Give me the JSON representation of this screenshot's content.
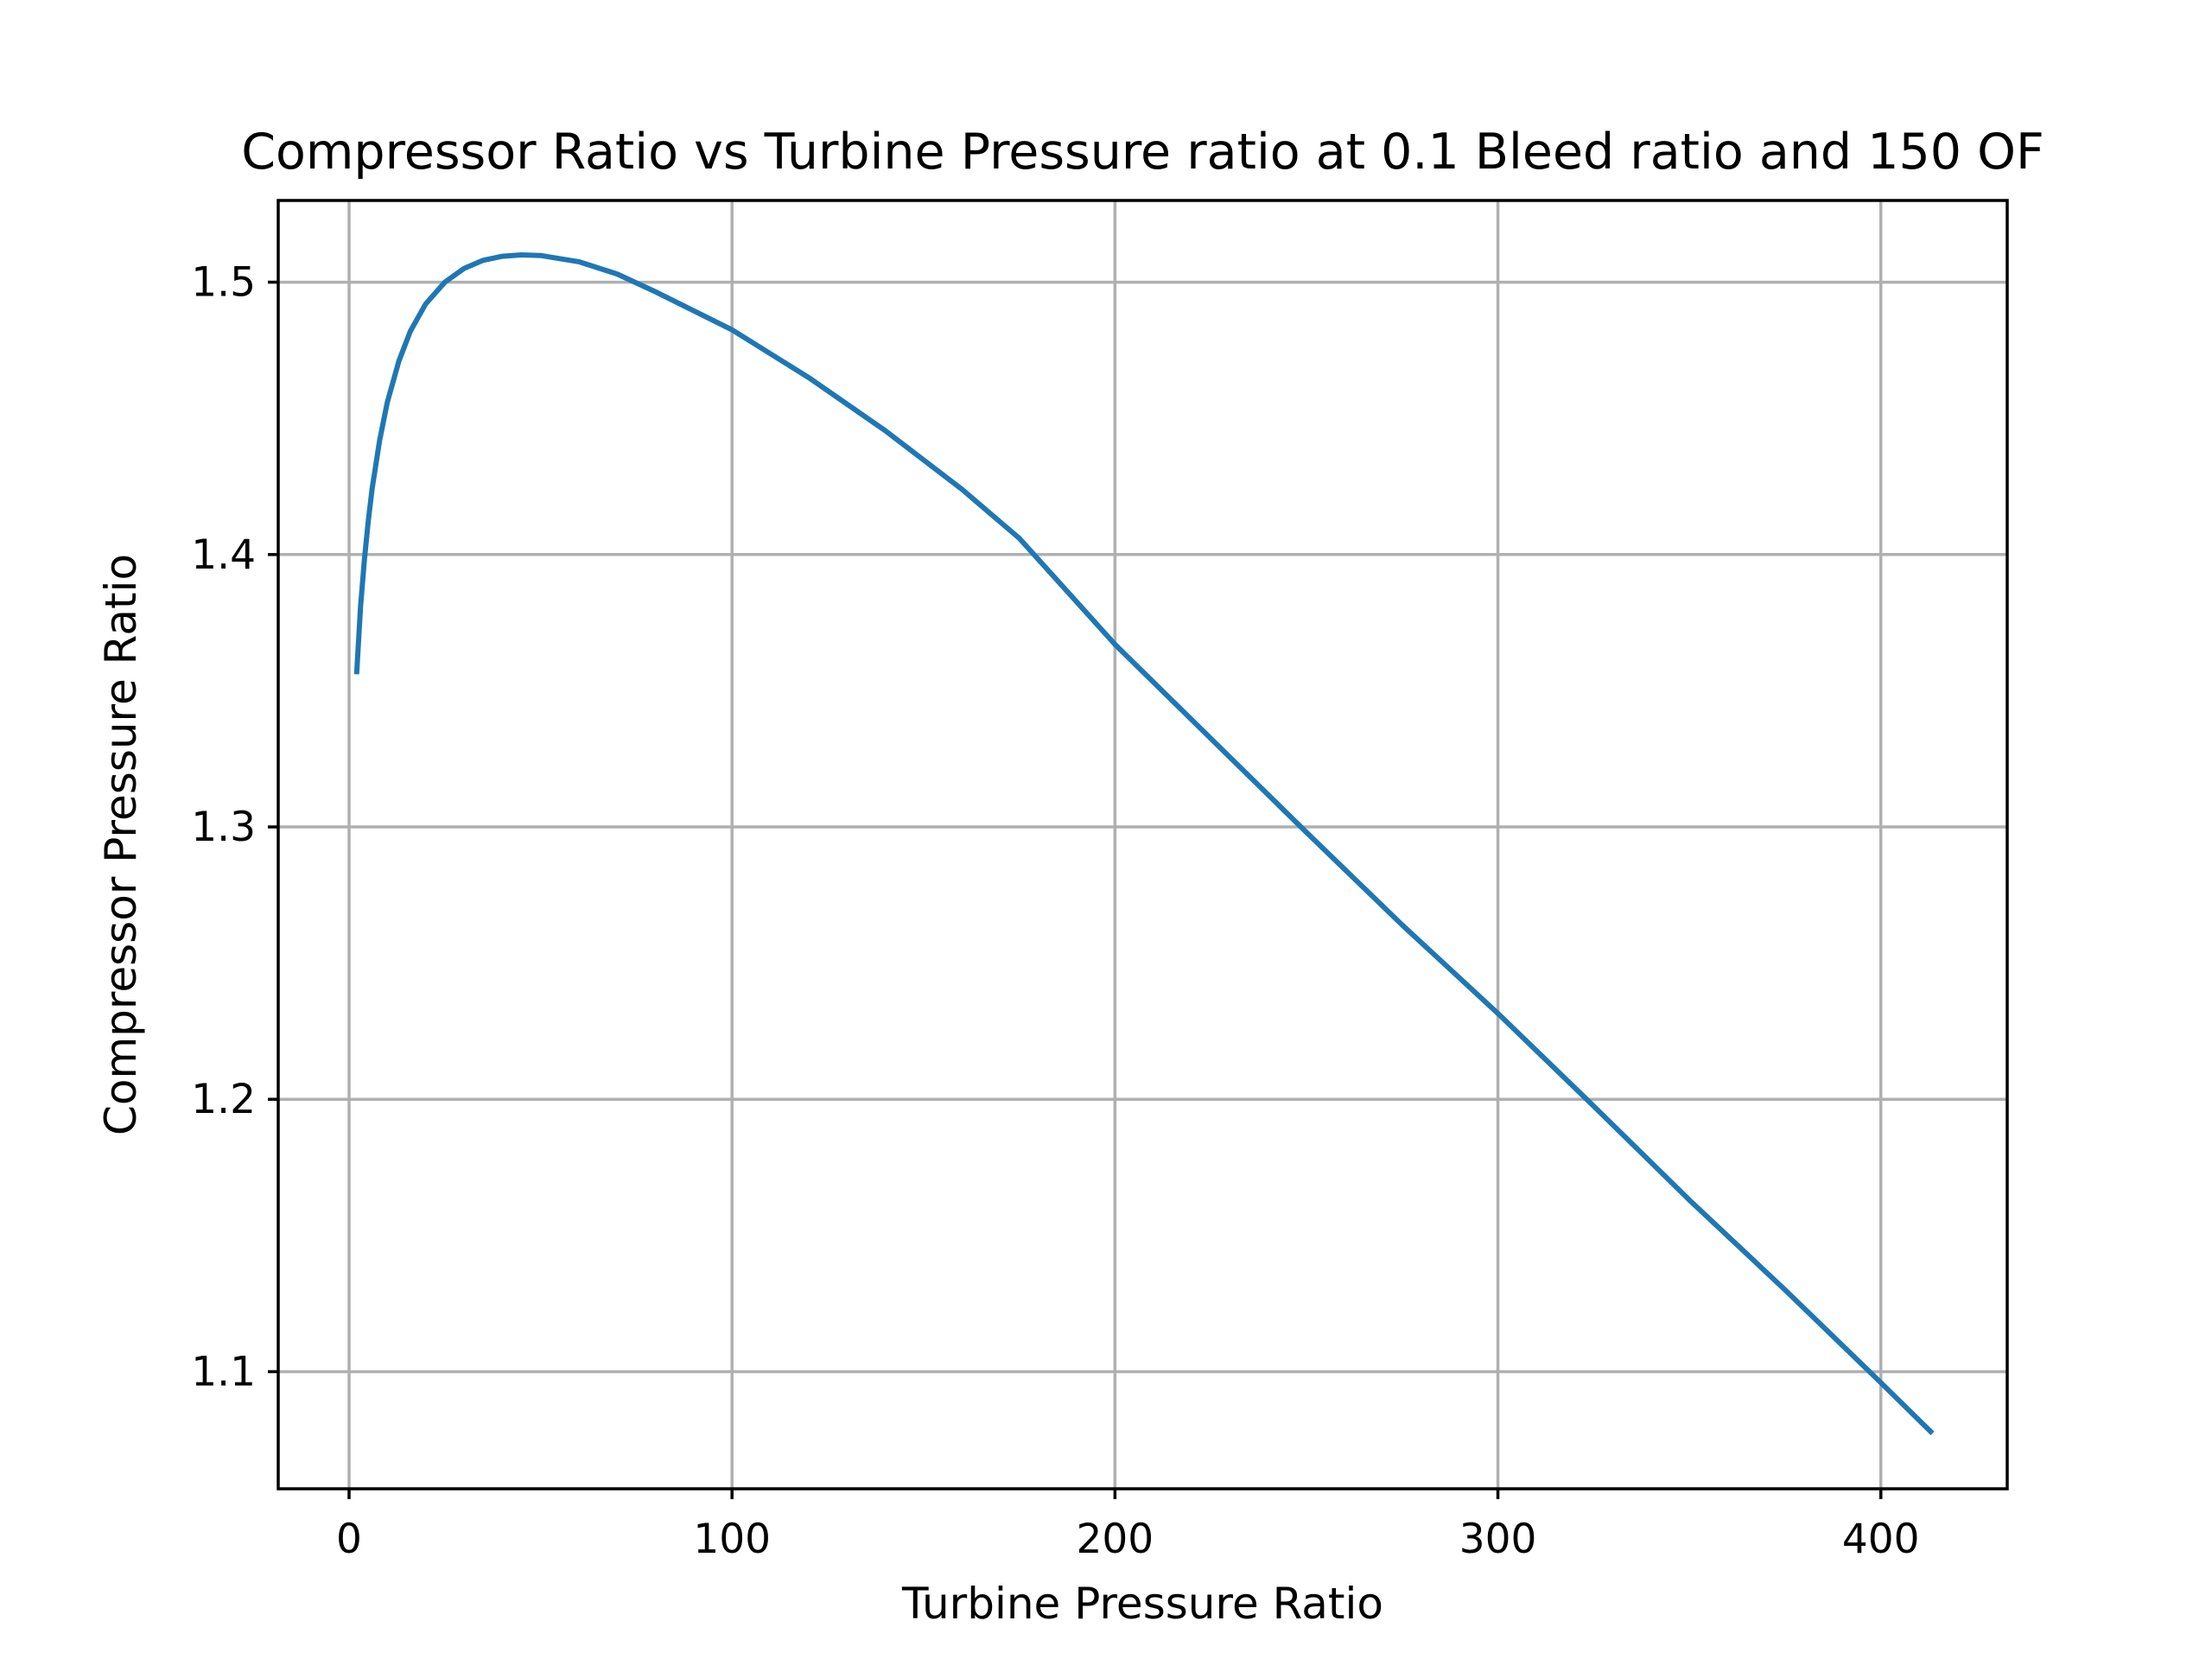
{
  "chart_data": {
    "type": "line",
    "title": "Compressor Ratio vs Turbine Pressure ratio at 0.1 Bleed ratio and 150 OF",
    "xlabel": "Turbine Pressure Ratio",
    "ylabel": "Compressor Pressure Ratio",
    "xlim": [
      -18.5,
      433
    ],
    "ylim": [
      1.057,
      1.53
    ],
    "xticks": [
      0,
      100,
      200,
      300,
      400
    ],
    "xtick_labels": [
      "0",
      "100",
      "200",
      "300",
      "400"
    ],
    "yticks": [
      1.1,
      1.2,
      1.3,
      1.4,
      1.5
    ],
    "ytick_labels": [
      "1.1",
      "1.2",
      "1.3",
      "1.4",
      "1.5"
    ],
    "grid": true,
    "series": [
      {
        "color": "#1f77b4",
        "x": [
          2,
          3,
          4,
          5,
          6,
          8,
          10,
          13,
          16,
          20,
          25,
          30,
          35,
          40,
          45,
          50,
          60,
          70,
          80,
          90,
          100,
          120,
          140,
          160,
          175,
          200,
          225,
          250,
          275,
          300,
          325,
          350,
          375,
          400,
          413
        ],
        "y": [
          1.357,
          1.381,
          1.398,
          1.412,
          1.424,
          1.442,
          1.456,
          1.471,
          1.482,
          1.492,
          1.5,
          1.505,
          1.508,
          1.5095,
          1.51,
          1.5098,
          1.5075,
          1.503,
          1.4965,
          1.4895,
          1.4825,
          1.465,
          1.4455,
          1.424,
          1.406,
          1.367,
          1.3325,
          1.298,
          1.264,
          1.2315,
          1.1975,
          1.163,
          1.13,
          1.096,
          1.078
        ]
      }
    ]
  }
}
